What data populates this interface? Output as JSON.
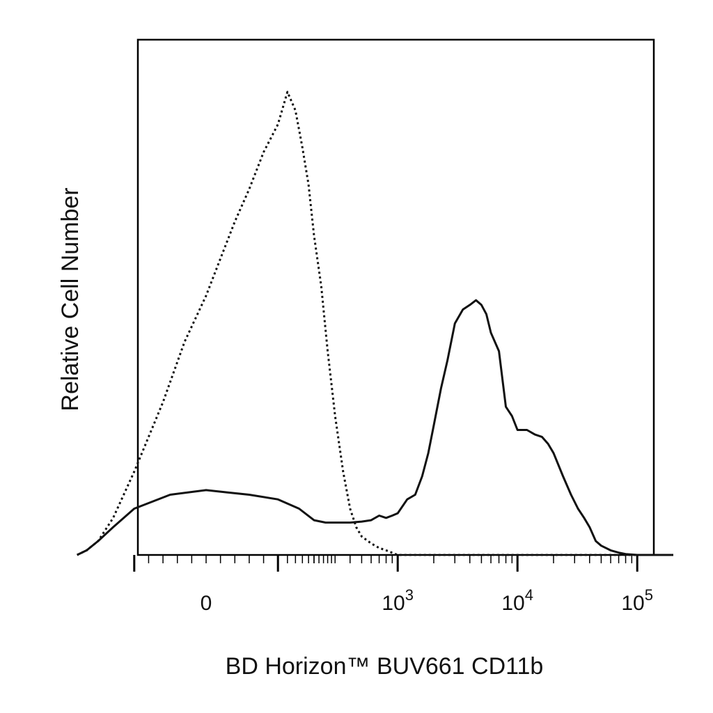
{
  "chart_data": {
    "type": "area",
    "title": "",
    "xlabel": "BD Horizon™ BUV661 CD11b",
    "ylabel": "Relative Cell Number",
    "x_scale": "biexponential",
    "xlim": [
      -300,
      200000
    ],
    "ylim": [
      0,
      100
    ],
    "grid": false,
    "legend": "none",
    "colors": {
      "series": "#111111",
      "axis": "#000000",
      "background": "#ffffff"
    },
    "x_ticks": [
      {
        "value": 0,
        "base": "0",
        "exp": ""
      },
      {
        "value": 1000,
        "base": "10",
        "exp": "3"
      },
      {
        "value": 10000,
        "base": "10",
        "exp": "4"
      },
      {
        "value": 100000,
        "base": "10",
        "exp": "5"
      }
    ],
    "series": [
      {
        "style": "dotted",
        "x": [
          -300,
          -250,
          -200,
          -150,
          -100,
          -60,
          -30,
          0,
          20,
          40,
          60,
          80,
          100,
          120,
          140,
          160,
          180,
          200,
          230,
          260,
          300,
          350,
          400,
          450,
          500,
          600,
          700,
          800,
          1000,
          1500,
          3000,
          10000,
          50000,
          100000,
          200000
        ],
        "y": [
          0,
          1,
          3,
          8,
          18,
          33,
          46,
          56,
          64,
          72,
          79,
          87,
          93,
          100,
          96,
          88,
          80,
          69,
          58,
          44,
          30,
          18,
          10,
          6,
          4,
          2.5,
          1.5,
          1,
          0,
          0,
          0,
          0,
          0,
          0,
          0
        ]
      },
      {
        "style": "solid",
        "x": [
          -300,
          -250,
          -200,
          -150,
          -100,
          -50,
          0,
          30,
          60,
          100,
          150,
          200,
          250,
          300,
          400,
          500,
          600,
          700,
          800,
          900,
          1000,
          1200,
          1400,
          1600,
          1800,
          2000,
          2300,
          2600,
          3000,
          3500,
          4000,
          4500,
          5000,
          5500,
          6000,
          7000,
          8000,
          9000,
          10000,
          12000,
          14000,
          16000,
          18000,
          20000,
          24000,
          28000,
          32000,
          36000,
          40000,
          45000,
          50000,
          60000,
          70000,
          80000,
          100000,
          200000
        ],
        "y": [
          0,
          1,
          3,
          6,
          10,
          13,
          14,
          13.5,
          13,
          12,
          10,
          7.5,
          7,
          7,
          7,
          7.2,
          7.5,
          8.5,
          8,
          8.5,
          9,
          12,
          13,
          17,
          22,
          28,
          36,
          42,
          50,
          53,
          54,
          55,
          54,
          52,
          48,
          44,
          32,
          30,
          27,
          27,
          26,
          25.5,
          24,
          22,
          17,
          13,
          10,
          8,
          6,
          3,
          2,
          1,
          0.5,
          0.2,
          0,
          0
        ]
      }
    ]
  }
}
